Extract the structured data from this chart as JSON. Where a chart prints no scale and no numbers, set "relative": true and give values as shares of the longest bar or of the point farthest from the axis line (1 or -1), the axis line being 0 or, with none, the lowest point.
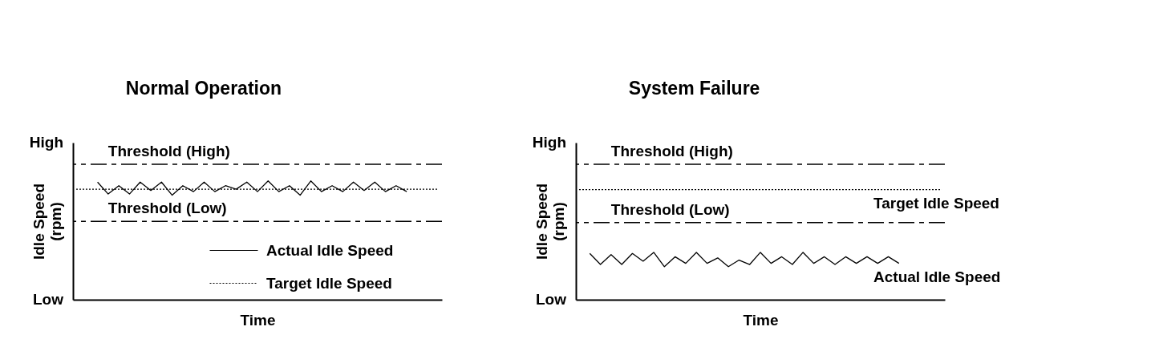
{
  "chart_data": [
    {
      "type": "line",
      "title": "Normal Operation",
      "xlabel": "Time",
      "ylabel": "Idle Speed\n(rpm)",
      "relative": true,
      "annotations": [
        "High",
        "Low"
      ],
      "categories": [
        null,
        null,
        null,
        null,
        null,
        null,
        null,
        null,
        null,
        null,
        null,
        null,
        null,
        null,
        null,
        null,
        null,
        null,
        null,
        null,
        null,
        null,
        null,
        null,
        null,
        null,
        null,
        null,
        null,
        null,
        null,
        null,
        null,
        null,
        null
      ],
      "legend": "bottom right",
      "series": [
        {
          "name": "Actual Idle Speed",
          "color": "#000000",
          "line_style": "solid",
          "values": [
            null,
            null,
            0.99,
            0.89,
            0.96,
            0.89,
            0.99,
            0.92,
            0.99,
            0.88,
            0.96,
            0.91,
            0.99,
            0.91,
            0.96,
            0.93,
            0.99,
            0.91,
            1,
            0.91,
            0.96,
            0.88,
            1,
            0.91,
            0.96,
            0.91,
            0.99,
            0.92,
            0.99,
            0.91,
            0.96,
            0.91,
            null,
            null,
            null
          ]
        },
        {
          "name": "Target Idle Speed",
          "color": "#000000",
          "line_style": "dotted",
          "values": [
            0.93,
            0.93,
            0.93,
            0.93,
            0.93,
            0.93,
            0.93,
            0.93,
            0.93,
            0.93,
            0.93,
            0.93,
            0.93,
            0.93,
            0.93,
            0.93,
            0.93,
            0.93,
            0.93,
            0.93,
            0.93,
            0.93,
            0.93,
            0.93,
            0.93,
            0.93,
            0.93,
            0.93,
            0.93,
            0.93,
            0.93,
            0.93,
            0.93,
            0.93,
            0.93
          ]
        }
      ],
      "ref_lines": [
        {
          "axis": "y",
          "value": 1.14,
          "label": "Threshold (High)",
          "line_style": "dashed",
          "color": "#000000"
        },
        {
          "axis": "y",
          "value": 0.66,
          "label": "Threshold (Low)",
          "line_style": "dashed",
          "color": "#000000"
        }
      ]
    },
    {
      "type": "line",
      "title": "System Failure",
      "xlabel": "Time",
      "ylabel": "Idle Speed\n(rpm)",
      "relative": true,
      "annotations": [
        "High",
        "Low"
      ],
      "categories": [
        null,
        null,
        null,
        null,
        null,
        null,
        null,
        null,
        null,
        null,
        null,
        null,
        null,
        null,
        null,
        null,
        null,
        null,
        null,
        null,
        null,
        null,
        null,
        null,
        null,
        null,
        null,
        null,
        null,
        null,
        null,
        null,
        null,
        null,
        null
      ],
      "series": [
        {
          "name": "Actual Idle Speed",
          "color": "#000000",
          "line_style": "solid",
          "values": [
            null,
            0.42,
            0.32,
            0.41,
            0.32,
            0.42,
            0.35,
            0.43,
            0.3,
            0.39,
            0.33,
            0.43,
            0.33,
            0.38,
            0.3,
            0.36,
            0.32,
            0.43,
            0.33,
            0.39,
            0.32,
            0.43,
            0.33,
            0.39,
            0.32,
            0.39,
            0.33,
            0.39,
            0.33,
            0.39,
            0.33,
            null,
            null,
            null,
            null
          ]
        },
        {
          "name": "Target Idle Speed",
          "color": "#000000",
          "line_style": "dotted",
          "values": [
            1,
            1,
            1,
            1,
            1,
            1,
            1,
            1,
            1,
            1,
            1,
            1,
            1,
            1,
            1,
            1,
            1,
            1,
            1,
            1,
            1,
            1,
            1,
            1,
            1,
            1,
            1,
            1,
            1,
            1,
            1,
            1,
            1,
            1,
            1
          ]
        }
      ],
      "ref_lines": [
        {
          "axis": "y",
          "value": 1.23,
          "label": "Threshold (High)",
          "line_style": "dashed",
          "color": "#000000"
        },
        {
          "axis": "y",
          "value": 0.7,
          "label": "Threshold (Low)",
          "line_style": "dashed",
          "color": "#000000"
        }
      ]
    }
  ]
}
